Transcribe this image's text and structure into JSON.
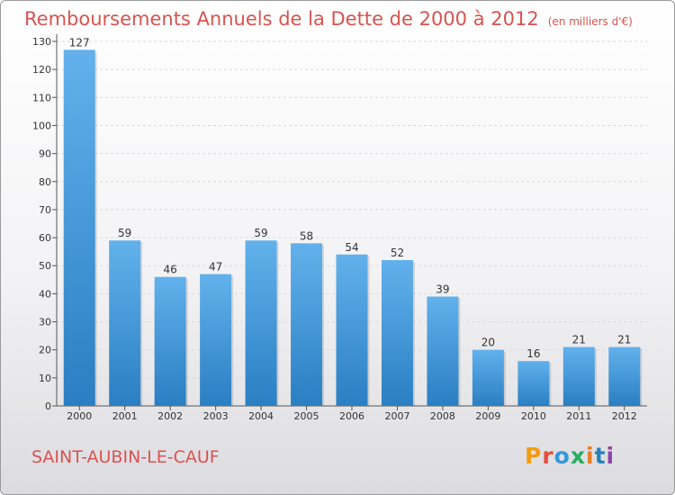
{
  "title": "Remboursements Annuels de la Dette de 2000 à 2012",
  "unit": "(en milliers d'€)",
  "commune": "SAINT-AUBIN-LE-CAUF",
  "logo": {
    "text": "Proxiti",
    "colors": [
      "#f39c12",
      "#e74c3c",
      "#3498db",
      "#27ae60",
      "#e67e22",
      "#2980b9",
      "#8e44ad"
    ]
  },
  "colors": {
    "title": "#d9534f",
    "bar_light": "#62b1ec",
    "bar_dark": "#2a7fc2",
    "grid": "#d9d9d9",
    "axis": "#555555"
  },
  "chart_data": {
    "type": "bar",
    "title": "Remboursements Annuels de la Dette de 2000 à 2012",
    "subtitle": "(en milliers d'€)",
    "categories": [
      "2000",
      "2001",
      "2002",
      "2003",
      "2004",
      "2005",
      "2006",
      "2007",
      "2008",
      "2009",
      "2010",
      "2011",
      "2012"
    ],
    "values": [
      127,
      59,
      46,
      47,
      59,
      58,
      54,
      52,
      39,
      20,
      16,
      21,
      21
    ],
    "ylim": [
      0,
      130
    ],
    "yticks": [
      0,
      10,
      20,
      30,
      40,
      50,
      60,
      70,
      80,
      90,
      100,
      110,
      120,
      130
    ],
    "grid": "horizontal dashed",
    "legend": "none"
  }
}
